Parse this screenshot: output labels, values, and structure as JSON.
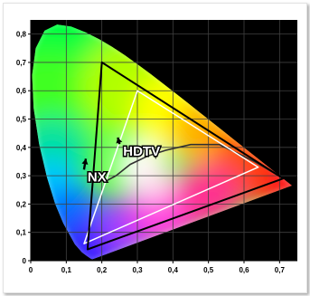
{
  "chart_data": {
    "type": "chromaticity-diagram",
    "title": "",
    "xlabel": "",
    "ylabel": "",
    "xlim": [
      0,
      0.75
    ],
    "ylim": [
      0,
      0.85
    ],
    "x_ticks": [
      "0",
      "0,1",
      "0,2",
      "0,3",
      "0,4",
      "0,5",
      "0,6",
      "0,7"
    ],
    "y_ticks": [
      "0",
      "0,1",
      "0,2",
      "0,3",
      "0,4",
      "0,5",
      "0,6",
      "0,7",
      "0,8"
    ],
    "grid": true,
    "spectral_locus": [
      [
        0.1741,
        0.005
      ],
      [
        0.172,
        0.005
      ],
      [
        0.1689,
        0.0069
      ],
      [
        0.1644,
        0.0109
      ],
      [
        0.1566,
        0.0177
      ],
      [
        0.144,
        0.0297
      ],
      [
        0.1241,
        0.0578
      ],
      [
        0.0913,
        0.1327
      ],
      [
        0.0687,
        0.2007
      ],
      [
        0.0454,
        0.295
      ],
      [
        0.0235,
        0.4127
      ],
      [
        0.0082,
        0.5384
      ],
      [
        0.0039,
        0.6548
      ],
      [
        0.0139,
        0.7502
      ],
      [
        0.0389,
        0.812
      ],
      [
        0.0743,
        0.8338
      ],
      [
        0.1142,
        0.8262
      ],
      [
        0.1547,
        0.8059
      ],
      [
        0.1929,
        0.7816
      ],
      [
        0.2296,
        0.7543
      ],
      [
        0.2658,
        0.7243
      ],
      [
        0.3016,
        0.6923
      ],
      [
        0.3373,
        0.6589
      ],
      [
        0.3731,
        0.6245
      ],
      [
        0.4087,
        0.5896
      ],
      [
        0.4441,
        0.5547
      ],
      [
        0.4788,
        0.5202
      ],
      [
        0.5125,
        0.4866
      ],
      [
        0.5448,
        0.4544
      ],
      [
        0.5752,
        0.4242
      ],
      [
        0.627,
        0.3725
      ],
      [
        0.6658,
        0.334
      ],
      [
        0.6915,
        0.3083
      ],
      [
        0.7079,
        0.292
      ],
      [
        0.719,
        0.2809
      ],
      [
        0.7347,
        0.2653
      ]
    ],
    "white_point": [
      0.3127,
      0.329
    ],
    "planckian_locus": [
      [
        0.21,
        0.28
      ],
      [
        0.24,
        0.3
      ],
      [
        0.28,
        0.34
      ],
      [
        0.33,
        0.37
      ],
      [
        0.38,
        0.39
      ],
      [
        0.45,
        0.41
      ],
      [
        0.53,
        0.41
      ],
      [
        0.63,
        0.35
      ],
      [
        0.71,
        0.29
      ]
    ],
    "series": [
      {
        "name": "HDTV",
        "color": "#ffffff",
        "vertices": [
          [
            0.64,
            0.33
          ],
          [
            0.3,
            0.6
          ],
          [
            0.15,
            0.06
          ]
        ]
      },
      {
        "name": "NX",
        "color": "#000000",
        "vertices": [
          [
            0.71,
            0.29
          ],
          [
            0.2,
            0.7
          ],
          [
            0.16,
            0.04
          ]
        ]
      }
    ],
    "annotations": [
      {
        "text": "HDTV",
        "at": [
          0.26,
          0.37
        ],
        "arrow_to": [
          0.245,
          0.435
        ]
      },
      {
        "text": "NX",
        "at": [
          0.16,
          0.28
        ],
        "arrow_to": [
          0.155,
          0.36
        ]
      }
    ]
  },
  "colors": {
    "plot_background": "#000000",
    "gridline": "#404040",
    "axis": "#000000",
    "planckian_locus": "#303030"
  }
}
